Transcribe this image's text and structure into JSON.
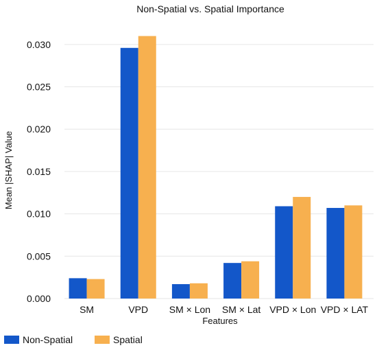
{
  "chart_data": {
    "type": "bar",
    "title": "Non-Spatial vs. Spatial Importance",
    "xlabel": "Features",
    "ylabel": "Mean |SHAP| Value",
    "categories": [
      "SM",
      "VPD",
      "SM × Lon",
      "SM × Lat",
      "VPD × Lon",
      "VPD × LAT"
    ],
    "series": [
      {
        "name": "Non-Spatial",
        "color": "#1357c9",
        "values": [
          0.0024,
          0.0296,
          0.0017,
          0.0042,
          0.0109,
          0.0107
        ]
      },
      {
        "name": "Spatial",
        "color": "#f7b04f",
        "values": [
          0.0023,
          0.031,
          0.0018,
          0.0044,
          0.012,
          0.011
        ]
      }
    ],
    "ylim": [
      0,
      0.0325
    ],
    "yticks": [
      "0.000",
      "0.005",
      "0.010",
      "0.015",
      "0.020",
      "0.025",
      "0.030"
    ],
    "grid": true,
    "legend_position": "bottom-left"
  }
}
